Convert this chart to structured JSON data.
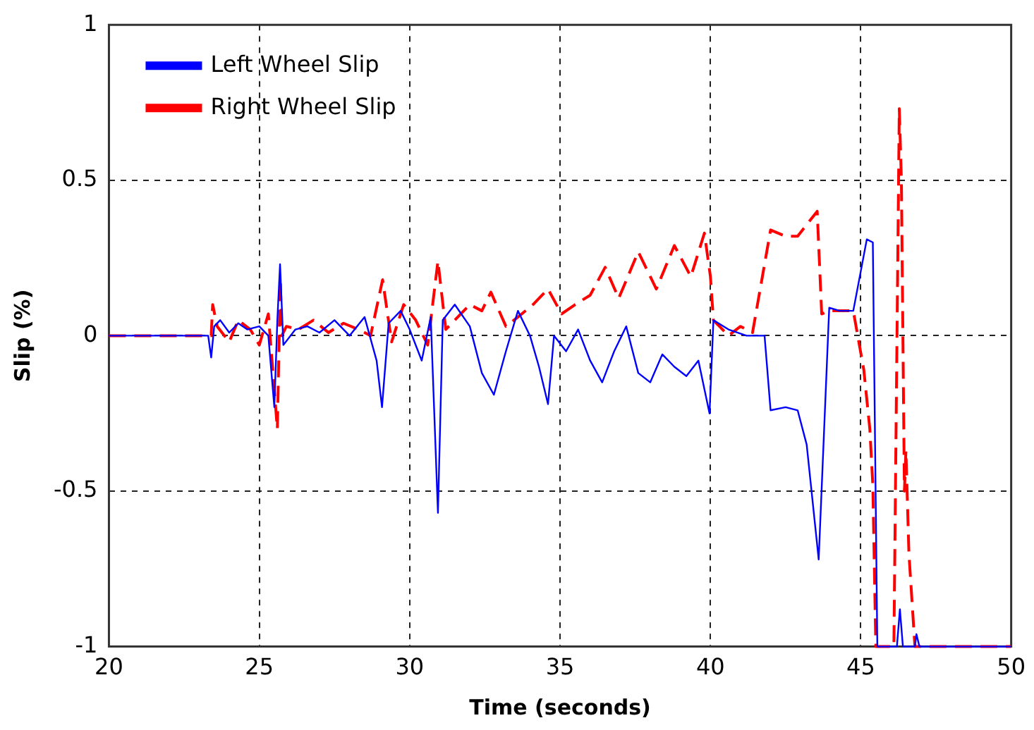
{
  "chart_data": {
    "type": "line",
    "xlabel": "Time (seconds)",
    "ylabel": "Slip (%)",
    "xlim": [
      20,
      50
    ],
    "ylim": [
      -1,
      1
    ],
    "xticks": [
      20,
      25,
      30,
      35,
      40,
      45,
      50
    ],
    "yticks": [
      -1,
      -0.5,
      0,
      0.5,
      1
    ],
    "grid": true,
    "legend": "top left",
    "marker": "none",
    "series": [
      {
        "name": "Left Wheel Slip",
        "color": "#0000ff",
        "line_style": "solid",
        "x": [
          20,
          23.3,
          23.4,
          23.5,
          23.7,
          24,
          24.3,
          24.6,
          25,
          25.3,
          25.5,
          25.6,
          25.69,
          25.8,
          26.2,
          26.6,
          27,
          27.5,
          28,
          28.5,
          28.9,
          29.08,
          29.3,
          29.7,
          30,
          30.4,
          30.7,
          30.94,
          31.1,
          31.5,
          32,
          32.4,
          32.8,
          33.2,
          33.6,
          34,
          34.3,
          34.6,
          34.8,
          35.2,
          35.6,
          36,
          36.4,
          36.8,
          37.2,
          37.6,
          38,
          38.4,
          38.8,
          39.2,
          39.6,
          39.97,
          40.1,
          40.6,
          41.2,
          41.8,
          42.0,
          42.5,
          42.9,
          43.2,
          43.6,
          43.95,
          44.3,
          44.75,
          45.2,
          45.4,
          45.55,
          46.2,
          46.3,
          46.4,
          46.8,
          46.85,
          46.95,
          50
        ],
        "values": [
          0,
          0,
          -0.07,
          0.03,
          0.05,
          0.01,
          0.04,
          0.02,
          0.03,
          0.0,
          -0.23,
          0.05,
          0.23,
          -0.03,
          0.02,
          0.03,
          0.01,
          0.05,
          0.0,
          0.06,
          -0.08,
          -0.23,
          0.04,
          0.08,
          0.02,
          -0.08,
          0.06,
          -0.57,
          0.05,
          0.1,
          0.03,
          -0.12,
          -0.19,
          -0.05,
          0.08,
          0.0,
          -0.1,
          -0.22,
          0.0,
          -0.05,
          0.02,
          -0.08,
          -0.15,
          -0.05,
          0.03,
          -0.12,
          -0.15,
          -0.06,
          -0.1,
          -0.13,
          -0.08,
          -0.25,
          0.05,
          0.02,
          0.0,
          0.0,
          -0.24,
          -0.23,
          -0.24,
          -0.35,
          -0.72,
          0.09,
          0.08,
          0.08,
          0.31,
          0.3,
          -1,
          -1,
          -0.88,
          -1,
          -1,
          -0.96,
          -1,
          -1
        ]
      },
      {
        "name": "Right Wheel Slip",
        "color": "#ff0000",
        "line_style": "dashed",
        "x": [
          20,
          23.4,
          23.45,
          23.6,
          24,
          24.3,
          24.7,
          25,
          25.3,
          25.6,
          25.7,
          25.75,
          25.9,
          26.3,
          26.8,
          27.3,
          27.8,
          28.3,
          28.7,
          29.1,
          29.4,
          29.8,
          30.2,
          30.6,
          30.94,
          31.2,
          31.6,
          32.0,
          32.4,
          32.7,
          33.2,
          33.6,
          34.1,
          34.6,
          35.05,
          35.5,
          36.0,
          36.5,
          36.95,
          37.6,
          38.2,
          38.8,
          39.35,
          39.8,
          40.0,
          40.1,
          40.6,
          41.0,
          41.4,
          42.0,
          42.5,
          42.9,
          43.55,
          43.7,
          44.0,
          44.75,
          45.1,
          45.3,
          45.4,
          45.5,
          46.1,
          46.28,
          46.35,
          46.45,
          46.5,
          46.6,
          46.8,
          50
        ],
        "values": [
          0,
          0,
          0.1,
          0.03,
          -0.02,
          0.05,
          0.02,
          -0.03,
          0.07,
          -0.3,
          0.18,
          0.0,
          0.03,
          0.02,
          0.05,
          0.01,
          0.04,
          0.02,
          0.0,
          0.18,
          -0.02,
          0.1,
          0.05,
          -0.03,
          0.24,
          0.02,
          0.06,
          0.1,
          0.08,
          0.14,
          0.03,
          0.06,
          0.1,
          0.15,
          0.07,
          0.1,
          0.13,
          0.22,
          0.12,
          0.27,
          0.15,
          0.29,
          0.19,
          0.33,
          0.19,
          0.05,
          0.0,
          0.03,
          0.01,
          0.34,
          0.32,
          0.32,
          0.4,
          0.07,
          0.08,
          0.08,
          -0.11,
          -0.3,
          -0.48,
          -1,
          -1,
          0.73,
          0.5,
          -0.5,
          -0.37,
          -0.7,
          -1,
          -1
        ]
      }
    ]
  }
}
